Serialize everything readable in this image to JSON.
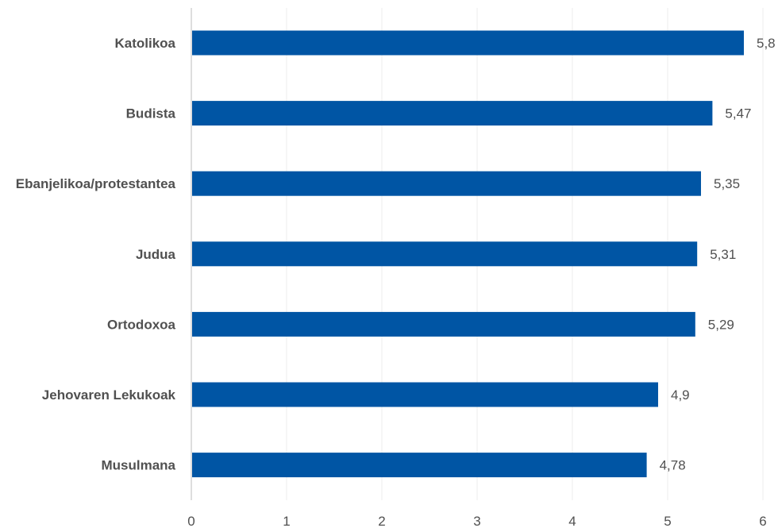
{
  "chart_data": {
    "type": "bar",
    "orientation": "horizontal",
    "categories": [
      "Katolikoa",
      "Budista",
      "Ebanjelikoa/protestantea",
      "Judua",
      "Ortodoxoa",
      "Jehovaren Lekukoak",
      "Musulmana"
    ],
    "values": [
      5.8,
      5.47,
      5.35,
      5.31,
      5.29,
      4.9,
      4.78
    ],
    "value_labels": [
      "5,8",
      "5,47",
      "5,35",
      "5,31",
      "5,29",
      "4,9",
      "4,78"
    ],
    "xlim": [
      0,
      6
    ],
    "xticks": [
      0,
      1,
      2,
      3,
      4,
      5,
      6
    ],
    "xtick_labels": [
      "0",
      "1",
      "2",
      "3",
      "4",
      "5",
      "6"
    ],
    "grid": true,
    "bar_color": "#0055a4"
  }
}
